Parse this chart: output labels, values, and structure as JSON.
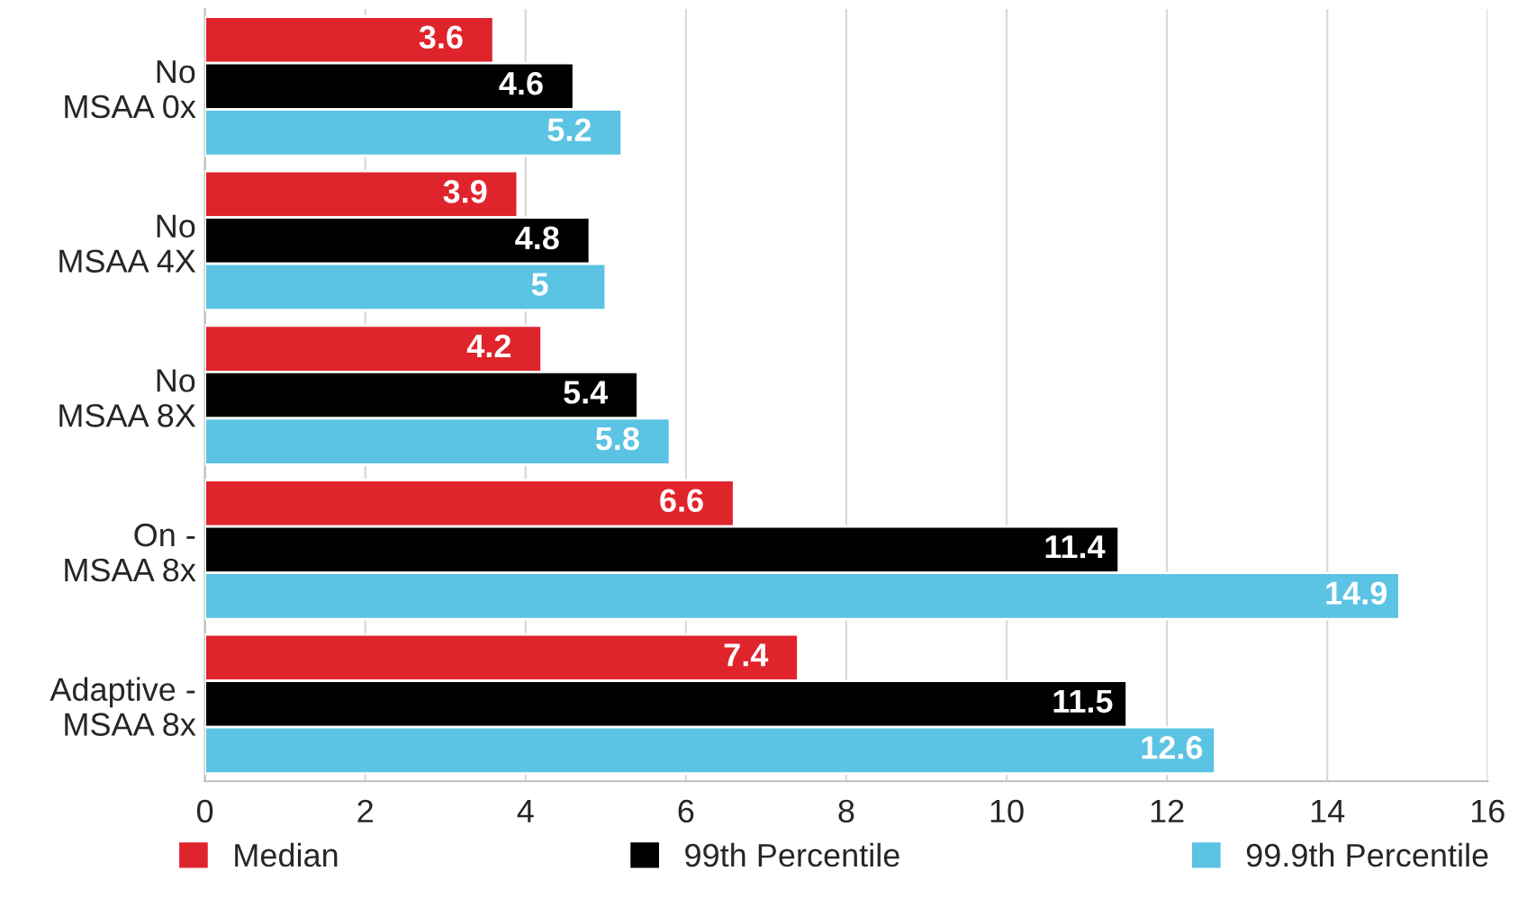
{
  "chart_data": {
    "type": "bar",
    "orientation": "horizontal",
    "categories": [
      "No\nMSAA 0x",
      "No\nMSAA 4X",
      "No\nMSAA 8X",
      "On -\nMSAA 8x",
      "Adaptive -\nMSAA 8x"
    ],
    "series": [
      {
        "name": "Median",
        "color": "#e0242c",
        "values": [
          3.6,
          3.9,
          4.2,
          6.6,
          7.4
        ]
      },
      {
        "name": "99th Percentile",
        "color": "#000000",
        "values": [
          4.6,
          4.8,
          5.4,
          11.4,
          11.5
        ]
      },
      {
        "name": "99.9th Percentile",
        "color": "#5bc3e3",
        "values": [
          5.2,
          5,
          5.8,
          14.9,
          12.6
        ]
      }
    ],
    "xlim": [
      0,
      16
    ],
    "xticks": [
      0,
      2,
      4,
      6,
      8,
      10,
      12,
      14,
      16
    ],
    "grid": "x",
    "legend": "bottom",
    "data_labels": true
  }
}
